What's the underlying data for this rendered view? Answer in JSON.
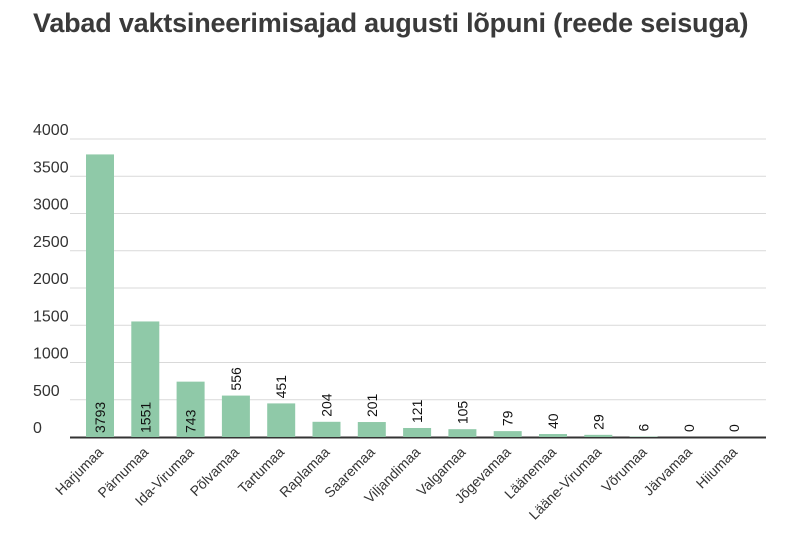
{
  "chart_data": {
    "type": "bar",
    "title": "Vabad vaktsineerimisajad augusti lõpuni (reede seisuga)",
    "xlabel": "",
    "ylabel": "",
    "ylim": [
      0,
      4000
    ],
    "yticks": [
      0,
      500,
      1000,
      1500,
      2000,
      2500,
      3000,
      3500,
      4000
    ],
    "grid": true,
    "categories": [
      "Harjumaa",
      "Pärnumaa",
      "Ida-Virumaa",
      "Põlvamaa",
      "Tartumaa",
      "Raplamaa",
      "Saaremaa",
      "Viljandimaa",
      "Valgamaa",
      "Jõgevamaa",
      "Läänemaa",
      "Lääne-Virumaa",
      "Võrumaa",
      "Järvamaa",
      "Hiiumaa"
    ],
    "values": [
      3793,
      1551,
      743,
      556,
      451,
      204,
      201,
      121,
      105,
      79,
      40,
      29,
      6,
      0,
      0
    ],
    "colors": {
      "bar": "#8fc9a8",
      "grid": "#d9d9d9",
      "axis": "#333333"
    }
  }
}
